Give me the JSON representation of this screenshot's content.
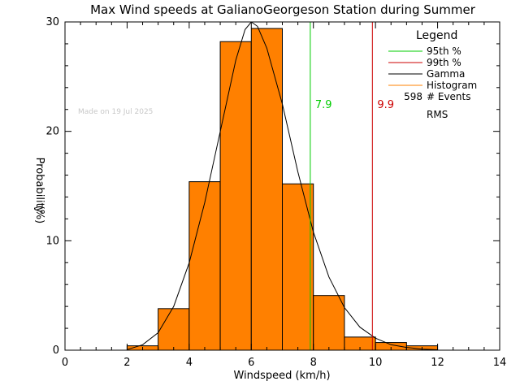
{
  "chart_data": {
    "type": "bar",
    "title": "Max Wind speeds at GalianoGeorgeson Station during Summer",
    "xlabel": "Windspeed (km/h)",
    "ylabel_line1": "Probability",
    "ylabel_line2": "(%)",
    "xlim": [
      0,
      14
    ],
    "ylim": [
      0,
      30
    ],
    "x_ticks": [
      0,
      2,
      4,
      6,
      8,
      10,
      12,
      14
    ],
    "y_ticks": [
      0,
      10,
      20,
      30
    ],
    "bins": [
      {
        "x0": 2,
        "x1": 3,
        "value": 0.4
      },
      {
        "x0": 3,
        "x1": 4,
        "value": 3.8
      },
      {
        "x0": 4,
        "x1": 5,
        "value": 15.4
      },
      {
        "x0": 5,
        "x1": 6,
        "value": 28.2
      },
      {
        "x0": 6,
        "x1": 7,
        "value": 29.4
      },
      {
        "x0": 7,
        "x1": 8,
        "value": 15.2
      },
      {
        "x0": 8,
        "x1": 9,
        "value": 5.0
      },
      {
        "x0": 9,
        "x1": 10,
        "value": 1.2
      },
      {
        "x0": 10,
        "x1": 11,
        "value": 0.7
      },
      {
        "x0": 11,
        "x1": 12,
        "value": 0.4
      }
    ],
    "gamma_curve": [
      [
        2.0,
        0.05
      ],
      [
        2.5,
        0.5
      ],
      [
        3.0,
        1.6
      ],
      [
        3.5,
        4.0
      ],
      [
        4.0,
        8.0
      ],
      [
        4.5,
        13.5
      ],
      [
        5.0,
        20.0
      ],
      [
        5.5,
        26.5
      ],
      [
        5.8,
        29.3
      ],
      [
        6.0,
        30.0
      ],
      [
        6.2,
        29.6
      ],
      [
        6.5,
        27.6
      ],
      [
        7.0,
        22.5
      ],
      [
        7.5,
        16.3
      ],
      [
        8.0,
        10.8
      ],
      [
        8.5,
        6.7
      ],
      [
        9.0,
        3.9
      ],
      [
        9.5,
        2.1
      ],
      [
        10.0,
        1.1
      ],
      [
        10.5,
        0.5
      ],
      [
        11.0,
        0.25
      ],
      [
        11.5,
        0.1
      ],
      [
        12.0,
        0.04
      ]
    ],
    "percentile_95": {
      "value": 7.9,
      "label": "7.9",
      "color": "#00cc00"
    },
    "percentile_99": {
      "value": 9.9,
      "label": "9.9",
      "color": "#cc0000"
    },
    "histogram_color": "#ff8000",
    "gamma_color": "#000000",
    "legend": {
      "title": "Legend",
      "entries": [
        {
          "label": "95th %",
          "color": "#00cc00"
        },
        {
          "label": "99th %",
          "color": "#cc0000"
        },
        {
          "label": "Gamma",
          "color": "#000000"
        },
        {
          "label": "Histogram",
          "color": "#ff8000"
        }
      ],
      "events_count": "598",
      "events_label": "# Events",
      "rms_label": "RMS"
    },
    "watermark": "Made on 19 Jul 2025",
    "legend_position": "top-right",
    "grid": false
  }
}
